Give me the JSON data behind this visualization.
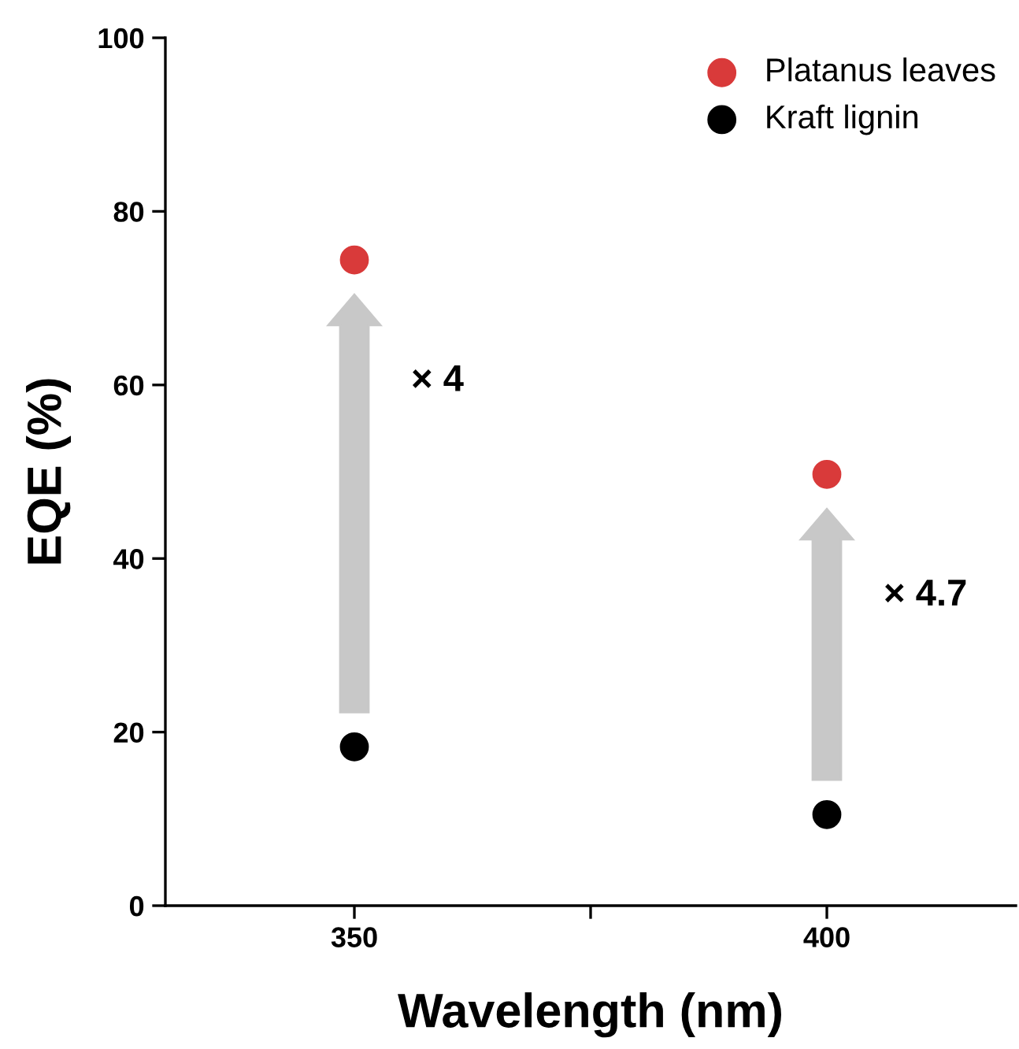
{
  "chart_data": {
    "type": "scatter",
    "xlabel": "Wavelength (nm)",
    "ylabel": "EQE (%)",
    "x": [
      350,
      400
    ],
    "series": [
      {
        "name": "Platanus leaves",
        "color": "#d93a3a",
        "values": [
          74.4,
          49.7
        ]
      },
      {
        "name": "Kraft lignin",
        "color": "#000000",
        "values": [
          18.3,
          10.5
        ]
      }
    ],
    "xlim": [
      330,
      420
    ],
    "xticks": [
      350,
      {
        "value": 375,
        "label": null
      },
      400
    ],
    "ylim": [
      0,
      100
    ],
    "yticks": [
      0,
      20,
      40,
      60,
      80,
      100
    ],
    "annotations": [
      "× 4",
      "× 4.7"
    ],
    "marker": "circle",
    "legend": "top right",
    "grid": false
  }
}
